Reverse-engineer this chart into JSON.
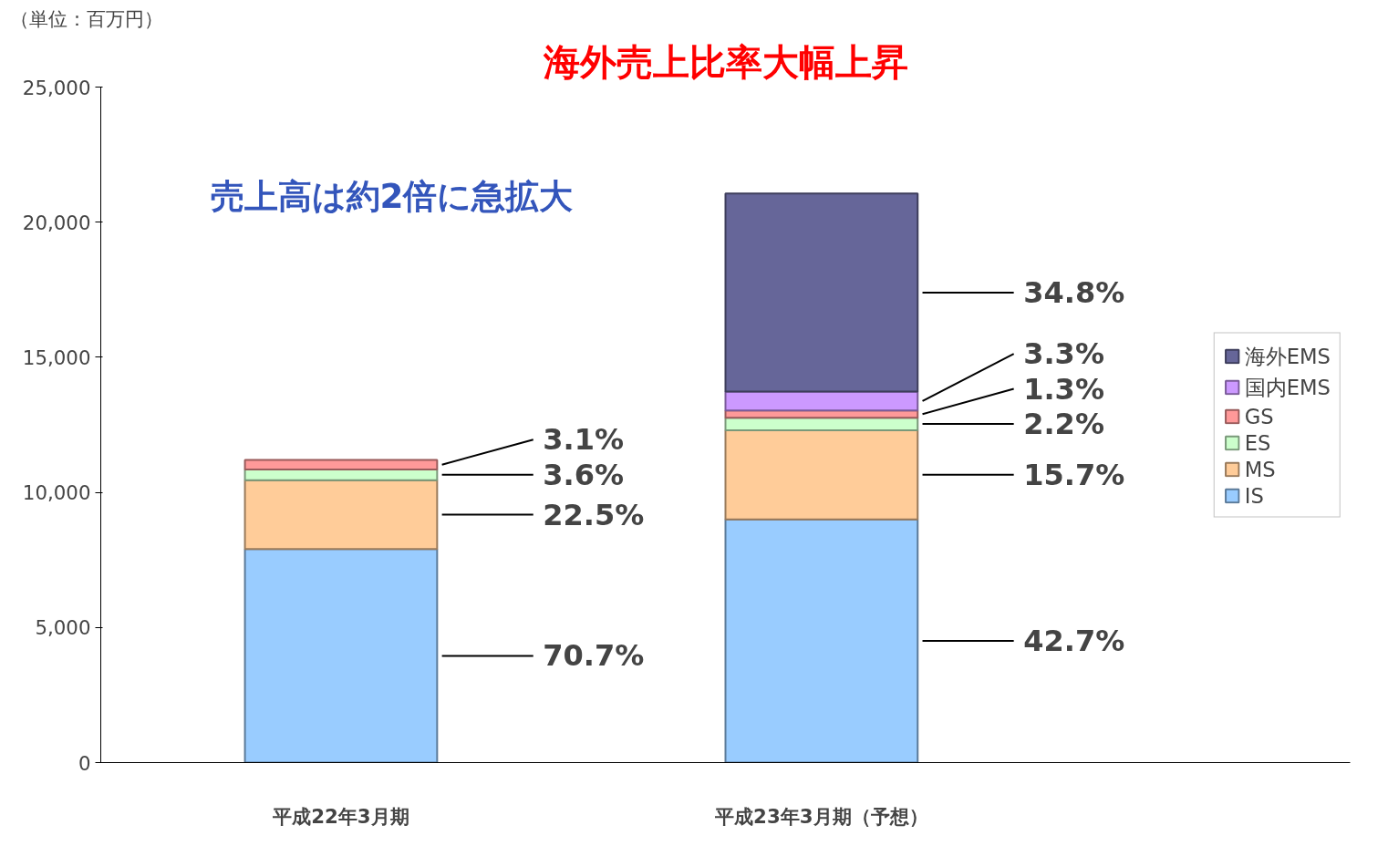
{
  "chart_data": {
    "type": "bar",
    "stacked": true,
    "title": "海外売上比率大幅上昇",
    "categories": [
      "平成22年3月期",
      "平成23年3月期（予想）"
    ],
    "series": [
      {
        "name": "IS",
        "color": "#99ccff",
        "values": [
          7900,
          9000
        ]
      },
      {
        "name": "MS",
        "color": "#ffcc99",
        "values": [
          2550,
          3300
        ]
      },
      {
        "name": "ES",
        "color": "#ccffcc",
        "values": [
          400,
          460
        ]
      },
      {
        "name": "GS",
        "color": "#ff9999",
        "values": [
          350,
          270
        ]
      },
      {
        "name": "国内EMS",
        "color": "#cc99ff",
        "values": [
          null,
          700
        ]
      },
      {
        "name": "海外EMS",
        "color": "#666699",
        "values": [
          null,
          7330
        ]
      }
    ],
    "ylim": [
      0,
      25000
    ],
    "yticks": [
      0,
      {
        "value": 5000,
        "label": "5,000"
      },
      {
        "value": 10000,
        "label": "10,000"
      },
      {
        "value": 15000,
        "label": "15,000"
      },
      {
        "value": 20000,
        "label": "20,000"
      },
      {
        "value": 25000,
        "label": "25,000"
      }
    ],
    "annotations": [
      "（単位：百万円）",
      "売上高は約2倍に急拡大",
      "70.7%",
      "22.5%",
      "3.6%",
      "3.1%",
      "42.7%",
      "15.7%",
      "2.2%",
      "1.3%",
      "3.3%",
      "34.8%"
    ],
    "legend": "right",
    "grid": false
  }
}
